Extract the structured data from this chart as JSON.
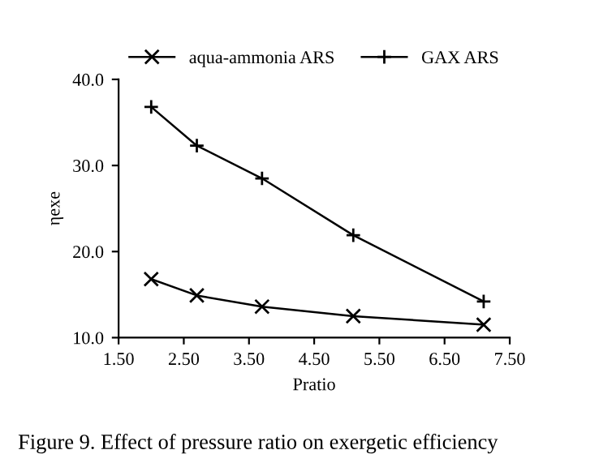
{
  "chart_data": {
    "type": "line",
    "xlabel": "Pratio",
    "ylabel": "ηexe",
    "series": [
      {
        "name": "aqua-ammonia ARS",
        "color": "#000000",
        "marker": "cross",
        "x": [
          2.0,
          2.7,
          3.7,
          5.1,
          7.1
        ],
        "values": [
          16.8,
          14.9,
          13.6,
          12.5,
          11.5
        ]
      },
      {
        "name": "GAX ARS",
        "color": "#000000",
        "marker": "plus",
        "x": [
          2.0,
          2.7,
          3.7,
          5.1,
          7.1
        ],
        "values": [
          36.8,
          32.3,
          28.5,
          21.9,
          14.2
        ]
      }
    ],
    "xlim": [
      1.5,
      7.5
    ],
    "xticks": [
      {
        "value": 1.5,
        "label": "1.50"
      },
      {
        "value": 2.5,
        "label": "2.50"
      },
      {
        "value": 3.5,
        "label": "3.50"
      },
      {
        "value": 4.5,
        "label": "4.50"
      },
      {
        "value": 5.5,
        "label": "5.50"
      },
      {
        "value": 6.5,
        "label": "6.50"
      },
      {
        "value": 7.5,
        "label": "7.50"
      }
    ],
    "ylim": [
      10,
      40
    ],
    "yticks": [
      {
        "value": 10,
        "label": "10.0"
      },
      {
        "value": 20,
        "label": "20.0"
      },
      {
        "value": 30,
        "label": "30.0"
      },
      {
        "value": 40,
        "label": "40.0"
      }
    ],
    "grid": false,
    "legend": "top",
    "line_style": "solid",
    "annotations": [
      "Figure 9. Effect of pressure ratio on exergetic efficiency"
    ]
  }
}
